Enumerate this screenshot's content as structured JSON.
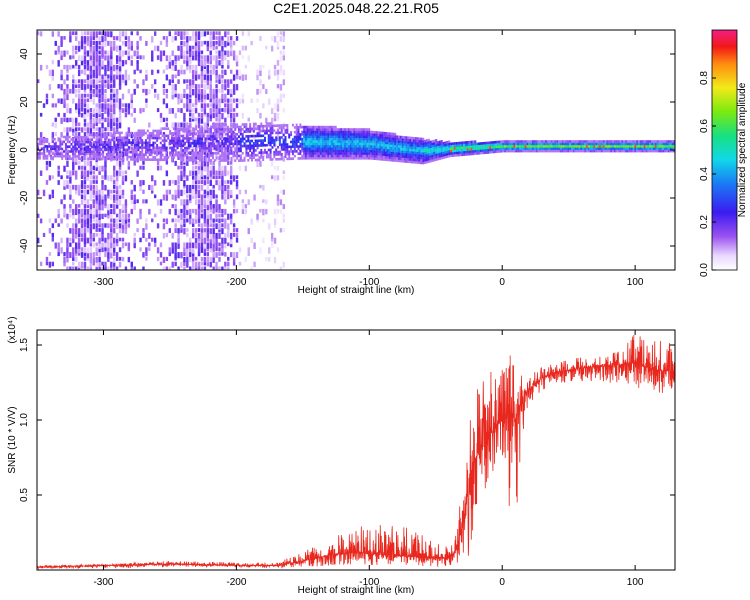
{
  "title": "C2E1.2025.048.22.21.R05",
  "colors": {
    "snr_line": "#e8281e",
    "spectrogram_sparse": "#a78bfa",
    "spectrogram_dense": "#6a0ddb"
  },
  "chart_data": [
    {
      "type": "heatmap",
      "xlabel": "Height of straight line (km)",
      "ylabel": "Frequency (Hz)",
      "xlim": [
        -350,
        130
      ],
      "ylim": [
        -50,
        50
      ],
      "x_ticks": [
        -300,
        -200,
        -100,
        0,
        100
      ],
      "x_tick_labels": [
        "-300",
        "-200",
        "-100",
        "0",
        "100"
      ],
      "y_ticks": [
        -40,
        -20,
        0,
        20,
        40
      ],
      "y_tick_labels": [
        "-40",
        "-20",
        "0",
        "20",
        "40"
      ],
      "colorbar": {
        "label": "Normalized spectral amplitude",
        "range": [
          0,
          1
        ],
        "ticks": [
          0.0,
          0.2,
          0.4,
          0.6,
          0.8
        ],
        "tick_labels": [
          "0.0",
          "0.2",
          "0.4",
          "0.6",
          "0.8"
        ],
        "colormap": "rainbow (white-violet-blue-cyan-green-yellow-red-magenta)"
      },
      "signal_band": [
        {
          "x": -350,
          "center_hz": 0,
          "half_width_hz": 4
        },
        {
          "x": -200,
          "center_hz": 3,
          "half_width_hz": 8
        },
        {
          "x": -150,
          "center_hz": 3,
          "half_width_hz": 7
        },
        {
          "x": -100,
          "center_hz": 2,
          "half_width_hz": 6
        },
        {
          "x": -60,
          "center_hz": -1,
          "half_width_hz": 5
        },
        {
          "x": -40,
          "center_hz": 0,
          "half_width_hz": 3
        },
        {
          "x": 0,
          "center_hz": 1,
          "half_width_hz": 2
        },
        {
          "x": 130,
          "center_hz": 1,
          "half_width_hz": 2
        }
      ],
      "noise_region": {
        "x_from": -350,
        "x_to": -165,
        "freq_range": [
          -50,
          50
        ]
      }
    },
    {
      "type": "line",
      "xlabel": "Height of straight line (km)",
      "ylabel": "SNR (10 * V/V)",
      "y_multiplier_label": "(x10⁴)",
      "xlim": [
        -350,
        130
      ],
      "ylim": [
        0,
        1.6
      ],
      "x_ticks": [
        -300,
        -200,
        -100,
        0,
        100
      ],
      "x_tick_labels": [
        "-300",
        "-200",
        "-100",
        "0",
        "100"
      ],
      "y_ticks": [
        0.5,
        1.0,
        1.5
      ],
      "y_tick_labels": [
        "0.5",
        "1.0",
        "1.5"
      ],
      "series": [
        {
          "x": [
            -350,
            -300,
            -250,
            -200,
            -170,
            -150,
            -130,
            -110,
            -90,
            -70,
            -50,
            -40,
            -35,
            -30,
            -25,
            -20,
            -15,
            -10,
            -5,
            0,
            5,
            10,
            15,
            20,
            30,
            40,
            50,
            60,
            70,
            80,
            90,
            100,
            110,
            120,
            130
          ],
          "y": [
            0.02,
            0.03,
            0.04,
            0.03,
            0.03,
            0.06,
            0.1,
            0.12,
            0.1,
            0.09,
            0.08,
            0.08,
            0.12,
            0.3,
            0.55,
            0.75,
            0.85,
            0.9,
            0.95,
            1.0,
            1.05,
            1.0,
            1.15,
            1.2,
            1.28,
            1.32,
            1.33,
            1.35,
            1.36,
            1.36,
            1.37,
            1.38,
            1.35,
            1.33,
            1.32
          ],
          "upper_envelope": [
            0.03,
            0.04,
            0.06,
            0.05,
            0.05,
            0.12,
            0.2,
            0.3,
            0.3,
            0.28,
            0.18,
            0.15,
            0.25,
            0.6,
            0.95,
            1.2,
            1.25,
            1.3,
            1.4,
            1.35,
            1.45,
            1.35,
            1.3,
            1.3,
            1.35,
            1.38,
            1.4,
            1.42,
            1.42,
            1.44,
            1.46,
            1.58,
            1.52,
            1.53,
            1.5
          ],
          "lower_envelope": [
            0.01,
            0.01,
            0.02,
            0.02,
            0.01,
            0.02,
            0.03,
            0.04,
            0.03,
            0.03,
            0.02,
            0.03,
            0.05,
            0.05,
            0.1,
            0.3,
            0.5,
            0.6,
            0.7,
            0.6,
            0.4,
            0.3,
            0.9,
            1.1,
            1.2,
            1.24,
            1.26,
            1.26,
            1.26,
            1.25,
            1.24,
            1.22,
            1.2,
            1.18,
            1.2
          ]
        }
      ],
      "grid": false
    }
  ]
}
